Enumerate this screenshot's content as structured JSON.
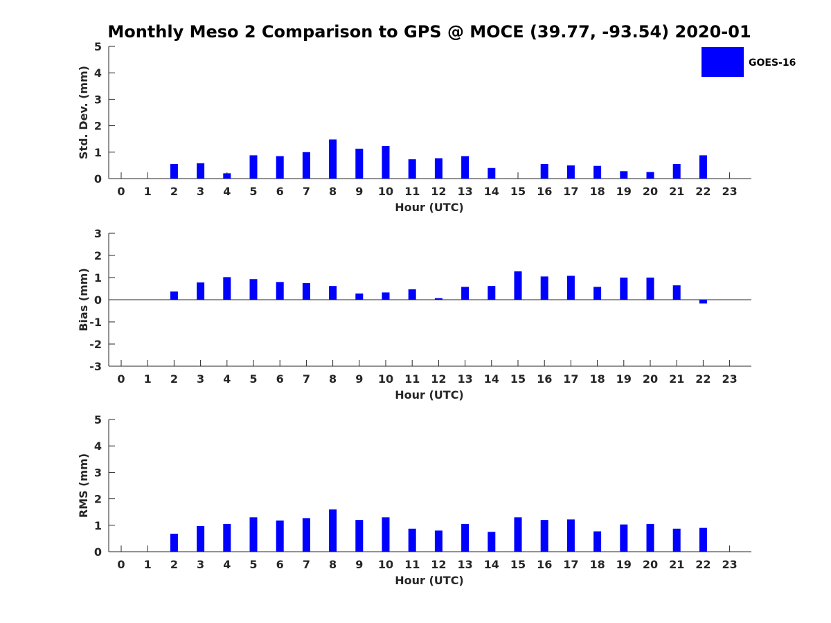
{
  "chart_data": {
    "type": "bar",
    "title": "Monthly Meso 2 Comparison to GPS @ MOCE (39.77, -93.54) 2020-01",
    "legend": {
      "label": "GOES-16",
      "color": "#0000ff",
      "placement": "top-right"
    },
    "categories": [
      "0",
      "1",
      "2",
      "3",
      "4",
      "5",
      "6",
      "7",
      "8",
      "9",
      "10",
      "11",
      "12",
      "13",
      "14",
      "15",
      "16",
      "17",
      "18",
      "19",
      "20",
      "21",
      "22",
      "23"
    ],
    "panels": [
      {
        "id": "std",
        "ylabel": "Std. Dev. (mm)",
        "xlabel": "Hour (UTC)",
        "ylim": [
          0,
          5
        ],
        "yticks": [
          "0",
          "1",
          "2",
          "3",
          "4",
          "5"
        ],
        "values": [
          null,
          null,
          0.55,
          0.58,
          0.2,
          0.88,
          0.85,
          1.0,
          1.48,
          1.13,
          1.23,
          0.73,
          0.77,
          0.85,
          0.4,
          null,
          0.55,
          0.5,
          0.48,
          0.28,
          0.25,
          0.55,
          0.88,
          null
        ]
      },
      {
        "id": "bias",
        "ylabel": "Bias (mm)",
        "xlabel": "Hour (UTC)",
        "ylim": [
          -3,
          3
        ],
        "yticks": [
          "-3",
          "-2",
          "-1",
          "0",
          "1",
          "2",
          "3"
        ],
        "values": [
          null,
          null,
          0.37,
          0.78,
          1.02,
          0.93,
          0.8,
          0.75,
          0.62,
          0.28,
          0.33,
          0.47,
          0.07,
          0.58,
          0.62,
          1.28,
          1.05,
          1.08,
          0.58,
          1.0,
          1.0,
          0.65,
          -0.17,
          null
        ]
      },
      {
        "id": "rms",
        "ylabel": "RMS (mm)",
        "xlabel": "Hour (UTC)",
        "ylim": [
          0,
          5
        ],
        "yticks": [
          "0",
          "1",
          "2",
          "3",
          "4",
          "5"
        ],
        "values": [
          null,
          null,
          0.68,
          0.97,
          1.05,
          1.3,
          1.18,
          1.27,
          1.6,
          1.2,
          1.3,
          0.87,
          0.8,
          1.05,
          0.75,
          1.3,
          1.2,
          1.22,
          0.77,
          1.03,
          1.05,
          0.87,
          0.9,
          null
        ]
      }
    ]
  }
}
